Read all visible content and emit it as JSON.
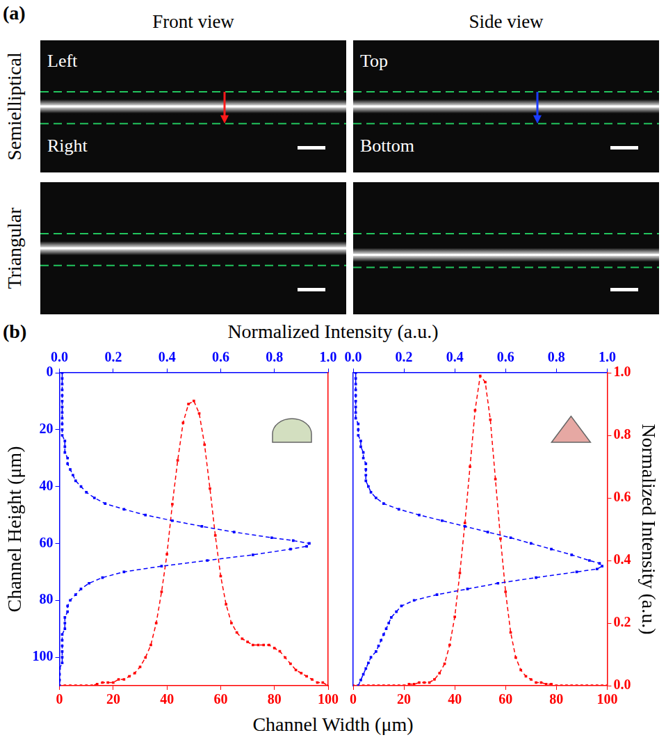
{
  "panel_a": {
    "label": "(a)",
    "columns": [
      "Front view",
      "Side view"
    ],
    "rows": [
      "Semielliptical",
      "Triangular"
    ],
    "front_labels": [
      "Left",
      "Right"
    ],
    "side_labels": [
      "Top",
      "Bottom"
    ]
  },
  "panel_b": {
    "label": "(b)",
    "top_axis_label": "Normalized Intensity (a.u.)",
    "bottom_axis_label": "Channel Width (μm)"
  },
  "chart_data": [
    {
      "type": "line",
      "ylabel": "Channel Height (μm)",
      "grid": false,
      "legend": "none",
      "xlim": [
        0,
        100
      ],
      "xticks": [
        0,
        20,
        40,
        60,
        80,
        100
      ],
      "x2lim": [
        0,
        1
      ],
      "x2ticks": [
        {
          "value": 0,
          "label": "0.0"
        },
        {
          "value": 0.2,
          "label": "0.2"
        },
        {
          "value": 0.4,
          "label": "0.4"
        },
        {
          "value": 0.6,
          "label": "0.6"
        },
        {
          "value": 0.8,
          "label": "0.8"
        },
        {
          "value": 1,
          "label": "1.0"
        }
      ],
      "ylim": [
        110,
        0
      ],
      "yticks": [
        0,
        20,
        40,
        60,
        80,
        100
      ],
      "y2lim": [
        0,
        1
      ],
      "series": [
        {
          "color": "#0000ff",
          "axis": "x2",
          "marker": "square",
          "line_style": "dashed",
          "x": [
            0.01,
            0.01,
            0.01,
            0.01,
            0.01,
            0.01,
            0.01,
            0.01,
            0.01,
            0.01,
            0.01,
            0.01,
            0.02,
            0.02,
            0.02,
            0.03,
            0.03,
            0.04,
            0.05,
            0.06,
            0.08,
            0.1,
            0.13,
            0.17,
            0.24,
            0.32,
            0.42,
            0.53,
            0.65,
            0.79,
            0.87,
            0.93,
            0.92,
            0.86,
            0.72,
            0.55,
            0.38,
            0.24,
            0.16,
            0.11,
            0.08,
            0.06,
            0.04,
            0.03,
            0.03,
            0.02,
            0.02,
            0.02,
            0.01,
            0.01,
            0.01,
            0.01,
            0.01,
            0.01,
            0,
            0,
            0,
            0
          ],
          "values": [
            0,
            2,
            4,
            6,
            8,
            10,
            12,
            14,
            16,
            18,
            20,
            22,
            24,
            26,
            28,
            30,
            32,
            34,
            36,
            38,
            40,
            42,
            44,
            46,
            48,
            50,
            52,
            54,
            56,
            58,
            59,
            60,
            61,
            62,
            64,
            66,
            68,
            70,
            72,
            74,
            76,
            78,
            80,
            82,
            84,
            86,
            88,
            90,
            92,
            94,
            96,
            98,
            100,
            102,
            104,
            106,
            108,
            110
          ]
        },
        {
          "color": "#ff0000",
          "axis": "y2",
          "marker": "square",
          "line_style": "dashed",
          "x": [
            0,
            2,
            4,
            6,
            8,
            10,
            12,
            14,
            16,
            18,
            20,
            22,
            24,
            26,
            28,
            30,
            32,
            34,
            36,
            38,
            40,
            42,
            44,
            46,
            48,
            50,
            52,
            54,
            56,
            58,
            60,
            62,
            64,
            66,
            68,
            70,
            72,
            74,
            76,
            78,
            80,
            82,
            84,
            86,
            88,
            90,
            92,
            94,
            96,
            98,
            100
          ],
          "values": [
            0,
            0,
            0,
            0,
            0,
            0,
            0,
            0.005,
            0.01,
            0.01,
            0.01,
            0.02,
            0.02,
            0.03,
            0.04,
            0.06,
            0.09,
            0.13,
            0.2,
            0.3,
            0.42,
            0.58,
            0.72,
            0.84,
            0.9,
            0.91,
            0.87,
            0.77,
            0.63,
            0.48,
            0.35,
            0.26,
            0.2,
            0.17,
            0.15,
            0.14,
            0.13,
            0.13,
            0.13,
            0.13,
            0.12,
            0.11,
            0.09,
            0.07,
            0.05,
            0.04,
            0.03,
            0.02,
            0.01,
            0.01,
            0
          ]
        }
      ]
    },
    {
      "type": "line",
      "y2label": "Normalized Intensity (a.u.)",
      "grid": false,
      "legend": "none",
      "xlim": [
        0,
        100
      ],
      "xticks": [
        0,
        20,
        40,
        60,
        80,
        100
      ],
      "x2lim": [
        0,
        1
      ],
      "x2ticks": [
        {
          "value": 0,
          "label": "0.0"
        },
        {
          "value": 0.2,
          "label": "0.2"
        },
        {
          "value": 0.4,
          "label": "0.4"
        },
        {
          "value": 0.6,
          "label": "0.6"
        },
        {
          "value": 0.8,
          "label": "0.8"
        },
        {
          "value": 1,
          "label": "1.0"
        }
      ],
      "ylim": [
        110,
        0
      ],
      "y2lim": [
        0,
        1
      ],
      "y2ticks": [
        {
          "value": 0,
          "label": "0.0"
        },
        {
          "value": 0.2,
          "label": "0.2"
        },
        {
          "value": 0.4,
          "label": "0.4"
        },
        {
          "value": 0.6,
          "label": "0.6"
        },
        {
          "value": 0.8,
          "label": "0.8"
        },
        {
          "value": 1,
          "label": "1.0"
        }
      ],
      "series": [
        {
          "color": "#0000ff",
          "axis": "x2",
          "marker": "square",
          "line_style": "dashed",
          "x": [
            0.01,
            0.01,
            0.01,
            0.01,
            0.01,
            0.01,
            0.01,
            0.01,
            0.01,
            0.02,
            0.02,
            0.02,
            0.03,
            0.03,
            0.04,
            0.04,
            0.05,
            0.05,
            0.05,
            0.05,
            0.06,
            0.07,
            0.09,
            0.12,
            0.18,
            0.26,
            0.35,
            0.44,
            0.53,
            0.62,
            0.7,
            0.78,
            0.86,
            0.93,
            0.97,
            0.98,
            0.96,
            0.88,
            0.72,
            0.57,
            0.45,
            0.33,
            0.24,
            0.19,
            0.17,
            0.15,
            0.14,
            0.13,
            0.12,
            0.11,
            0.1,
            0.09,
            0.07,
            0.06,
            0.05,
            0.04,
            0.03,
            0.02
          ],
          "values": [
            0,
            2,
            4,
            6,
            8,
            10,
            12,
            14,
            16,
            18,
            20,
            22,
            24,
            26,
            28,
            30,
            32,
            34,
            36,
            38,
            40,
            42,
            44,
            46,
            48,
            50,
            52,
            54,
            56,
            58,
            60,
            62,
            64,
            66,
            67,
            68,
            69,
            70,
            72,
            74,
            76,
            78,
            80,
            82,
            84,
            86,
            88,
            90,
            92,
            94,
            96,
            98,
            100,
            102,
            104,
            106,
            108,
            110
          ]
        },
        {
          "color": "#ff0000",
          "axis": "y2",
          "marker": "square",
          "line_style": "dashed",
          "x": [
            0,
            2,
            4,
            6,
            8,
            10,
            12,
            14,
            16,
            18,
            20,
            22,
            24,
            26,
            28,
            30,
            32,
            34,
            36,
            38,
            40,
            42,
            44,
            46,
            48,
            50,
            52,
            54,
            56,
            58,
            60,
            62,
            64,
            66,
            68,
            70,
            72,
            74,
            76,
            78,
            80,
            82,
            84,
            86,
            88,
            90,
            92,
            94,
            96,
            98,
            100
          ],
          "values": [
            0,
            0,
            0,
            0,
            0,
            0,
            0,
            0,
            0,
            0,
            0,
            0.005,
            0.005,
            0.01,
            0.01,
            0.01,
            0.02,
            0.04,
            0.07,
            0.13,
            0.22,
            0.36,
            0.52,
            0.7,
            0.88,
            0.99,
            0.97,
            0.85,
            0.66,
            0.47,
            0.3,
            0.17,
            0.09,
            0.05,
            0.03,
            0.02,
            0.01,
            0.01,
            0.005,
            0.005,
            0,
            0,
            0,
            0,
            0,
            0,
            0,
            0,
            0,
            0,
            0
          ]
        }
      ]
    }
  ]
}
